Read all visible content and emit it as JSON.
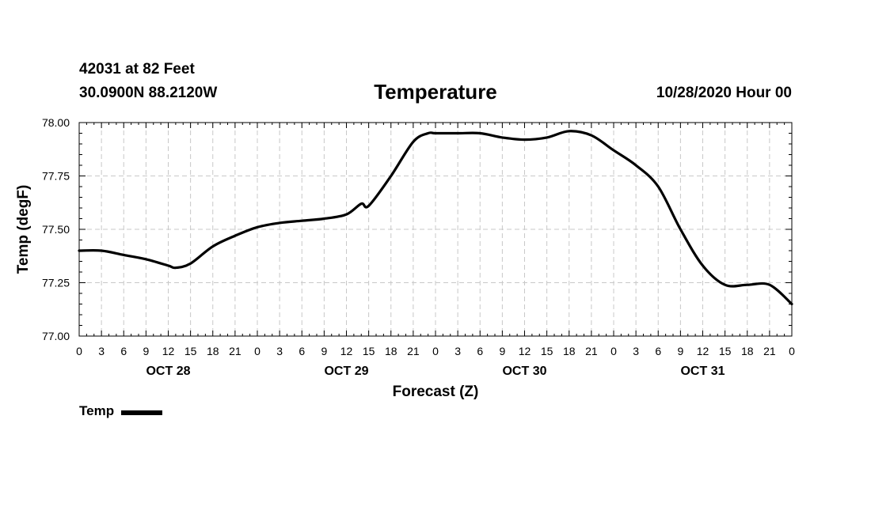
{
  "header": {
    "station": "42031 at 82 Feet",
    "coords": "30.0900N 88.2120W",
    "title": "Temperature",
    "issued": "10/28/2020 Hour 00"
  },
  "legend": {
    "label": "Temp"
  },
  "chart_data": {
    "type": "line",
    "title": "Temperature",
    "xlabel": "Forecast (Z)",
    "ylabel": "Temp (degF)",
    "ylim": [
      77.0,
      78.0
    ],
    "yticks": [
      "77.00",
      "77.25",
      "77.50",
      "77.75",
      "78.00"
    ],
    "xlim_hours": [
      0,
      96
    ],
    "xtick_labels": [
      "0",
      "3",
      "6",
      "9",
      "12",
      "15",
      "18",
      "21",
      "0",
      "3",
      "6",
      "9",
      "12",
      "15",
      "18",
      "21",
      "0",
      "3",
      "6",
      "9",
      "12",
      "15",
      "18",
      "21",
      "0",
      "3",
      "6",
      "9",
      "12",
      "15",
      "18",
      "21",
      "0"
    ],
    "days": [
      {
        "label": "OCT 28",
        "center_hour": 12
      },
      {
        "label": "OCT 29",
        "center_hour": 36
      },
      {
        "label": "OCT 30",
        "center_hour": 60
      },
      {
        "label": "OCT 31",
        "center_hour": 84
      }
    ],
    "grid": true,
    "legend_position": "bottom-left",
    "series": [
      {
        "name": "Temp",
        "x": [
          0,
          3,
          6,
          9,
          12,
          13,
          15,
          18,
          21,
          24,
          27,
          30,
          33,
          36,
          38,
          39,
          42,
          45,
          47,
          48,
          51,
          54,
          57,
          60,
          63,
          66,
          69,
          72,
          75,
          78,
          81,
          84,
          87,
          90,
          93,
          96
        ],
        "y": [
          77.4,
          77.4,
          77.38,
          77.36,
          77.33,
          77.32,
          77.34,
          77.42,
          77.47,
          77.51,
          77.53,
          77.54,
          77.55,
          77.57,
          77.62,
          77.61,
          77.75,
          77.91,
          77.95,
          77.95,
          77.95,
          77.95,
          77.93,
          77.92,
          77.93,
          77.96,
          77.94,
          77.87,
          77.8,
          77.7,
          77.5,
          77.33,
          77.24,
          77.24,
          77.24,
          77.15
        ]
      }
    ]
  }
}
